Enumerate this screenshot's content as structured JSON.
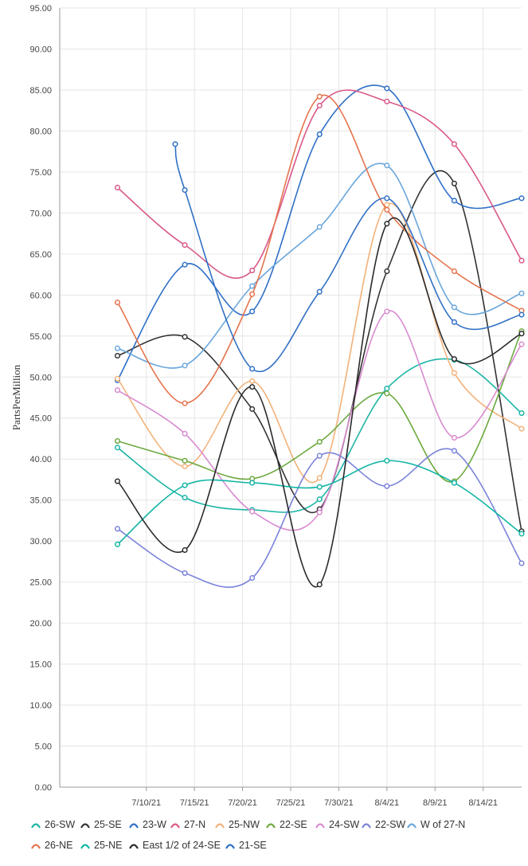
{
  "chart_data": {
    "type": "line",
    "title": "",
    "xlabel": "",
    "ylabel": "PartsPerMillion",
    "ylim": [
      0,
      95
    ],
    "y_ticks": [
      "0.00",
      "5.00",
      "10.00",
      "15.00",
      "20.00",
      "25.00",
      "30.00",
      "35.00",
      "40.00",
      "45.00",
      "50.00",
      "55.00",
      "60.00",
      "65.00",
      "70.00",
      "75.00",
      "80.00",
      "85.00",
      "90.00",
      "95.00"
    ],
    "xlim_days": [
      0,
      48
    ],
    "x_ticks": [
      {
        "day": 9,
        "label": "7/10/21"
      },
      {
        "day": 14,
        "label": "7/15/21"
      },
      {
        "day": 19,
        "label": "7/20/21"
      },
      {
        "day": 24,
        "label": "7/25/21"
      },
      {
        "day": 29,
        "label": "7/30/21"
      },
      {
        "day": 34,
        "label": "8/4/21"
      },
      {
        "day": 39,
        "label": "8/9/21"
      },
      {
        "day": 44,
        "label": "8/14/21"
      }
    ],
    "x_dates": [
      "7/7/21",
      "7/14/21",
      "7/21/21",
      "7/28/21",
      "8/4/21",
      "8/11/21",
      "8/18/21"
    ],
    "x_days": [
      6,
      13,
      20,
      27,
      34,
      41,
      48
    ],
    "legend_position": "bottom",
    "series": [
      {
        "name": "26-SW",
        "color": "#1cb5a5",
        "values": [
          41.4,
          35.3,
          33.8,
          35.1,
          48.6,
          52.1,
          45.6
        ]
      },
      {
        "name": "25-SE",
        "color": "#333333",
        "values": [
          52.6,
          54.9,
          46.1,
          33.9,
          62.9,
          73.6,
          31.2
        ]
      },
      {
        "name": "23-W",
        "color": "#2e6fc7",
        "values": [
          49.6,
          63.7,
          58.0,
          79.6,
          85.2,
          71.5,
          71.8
        ]
      },
      {
        "name": "27-N",
        "color": "#d9588a",
        "values": [
          73.1,
          66.1,
          63.0,
          83.1,
          83.6,
          78.4,
          64.2
        ]
      },
      {
        "name": "25-NW",
        "color": "#f2b27a",
        "values": [
          49.8,
          39.1,
          49.5,
          37.7,
          71.0,
          50.5,
          43.7
        ]
      },
      {
        "name": "22-SE",
        "color": "#6ca93f",
        "values": [
          42.2,
          39.8,
          37.6,
          42.1,
          48.0,
          37.3,
          55.6
        ]
      },
      {
        "name": "24-SW",
        "color": "#d98bd0",
        "values": [
          48.4,
          43.1,
          33.6,
          33.5,
          58.0,
          42.6,
          54.0
        ]
      },
      {
        "name": "22-SW",
        "color": "#7b82d9",
        "values": [
          31.5,
          26.1,
          25.5,
          40.4,
          36.7,
          41.0,
          27.3
        ]
      },
      {
        "name": "W of 27-N",
        "color": "#6aa6dc",
        "values": [
          53.5,
          51.4,
          61.1,
          68.3,
          75.8,
          58.5,
          60.2
        ]
      },
      {
        "name": "26-NE",
        "color": "#e5744e",
        "values": [
          59.1,
          46.8,
          60.1,
          84.2,
          70.4,
          62.9,
          58.1
        ]
      },
      {
        "name": "25-NE",
        "color": "#12b5a5",
        "values": [
          29.6,
          36.8,
          37.1,
          36.6,
          39.8,
          37.1,
          30.9
        ]
      },
      {
        "name": "East 1/2 of 24-SE",
        "color": "#2a2a2a",
        "values": [
          37.3,
          28.9,
          48.8,
          24.7,
          68.7,
          52.2,
          55.3
        ]
      },
      {
        "name": "21-SE",
        "color": "#3070c4",
        "days": [
          12,
          13,
          20,
          27,
          34,
          41,
          48
        ],
        "values": [
          78.4,
          72.8,
          51.0,
          60.4,
          71.8,
          56.7,
          57.6
        ]
      }
    ]
  }
}
